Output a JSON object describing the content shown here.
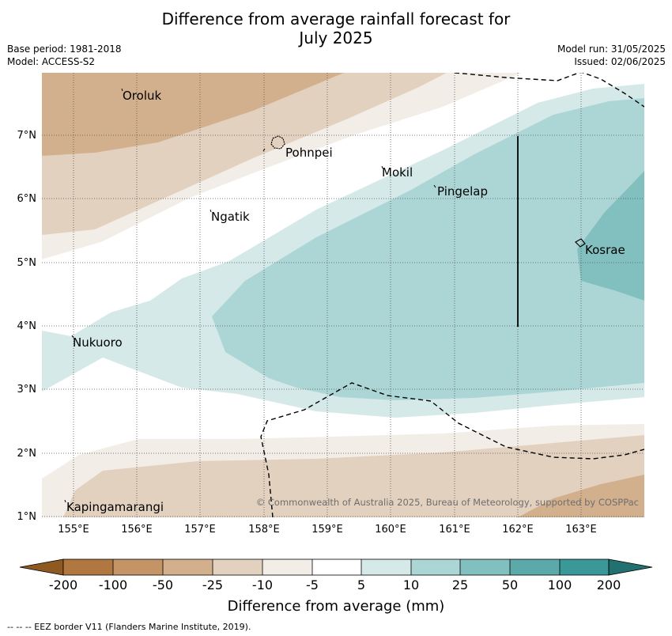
{
  "title_line1": "Difference from average rainfall forecast for",
  "title_line2": "July 2025",
  "base_period": "Base period: 1981-2018",
  "model": "Model: ACCESS-S2",
  "model_run": "Model run: 31/05/2025",
  "issued": "Issued: 02/06/2025",
  "copyright": "© Commonwealth of Australia 2025, Bureau of Meteorology, supported by COSPPac",
  "lat_labels": [
    "7°N",
    "6°N",
    "5°N",
    "4°N",
    "3°N",
    "2°N",
    "1°N"
  ],
  "lon_labels": [
    "155°E",
    "156°E",
    "157°E",
    "158°E",
    "159°E",
    "160°E",
    "161°E",
    "162°E",
    "163°E"
  ],
  "places": [
    {
      "name": "Oroluk"
    },
    {
      "name": "Pohnpei"
    },
    {
      "name": "Mokil"
    },
    {
      "name": "Pingelap"
    },
    {
      "name": "Ngatik"
    },
    {
      "name": "Kosrae"
    },
    {
      "name": "Nukuoro"
    },
    {
      "name": "Kapingamarangi"
    }
  ],
  "colorbar": {
    "title": "Difference from average (mm)",
    "tick_labels": [
      "-200",
      "-100",
      "-50",
      "-25",
      "-10",
      "-5",
      "5",
      "10",
      "25",
      "50",
      "100",
      "200"
    ],
    "colors": [
      "#8f5a22",
      "#b07840",
      "#c49466",
      "#d2b08e",
      "#e3d1bf",
      "#f2ede6",
      "#ffffff",
      "#d4e9e8",
      "#acd6d5",
      "#82bfbf",
      "#5ca9aa",
      "#3a9898",
      "#22706f"
    ]
  },
  "legend": "--  --  -- EEZ border V11 (Flanders Marine Institute, 2019)."
}
